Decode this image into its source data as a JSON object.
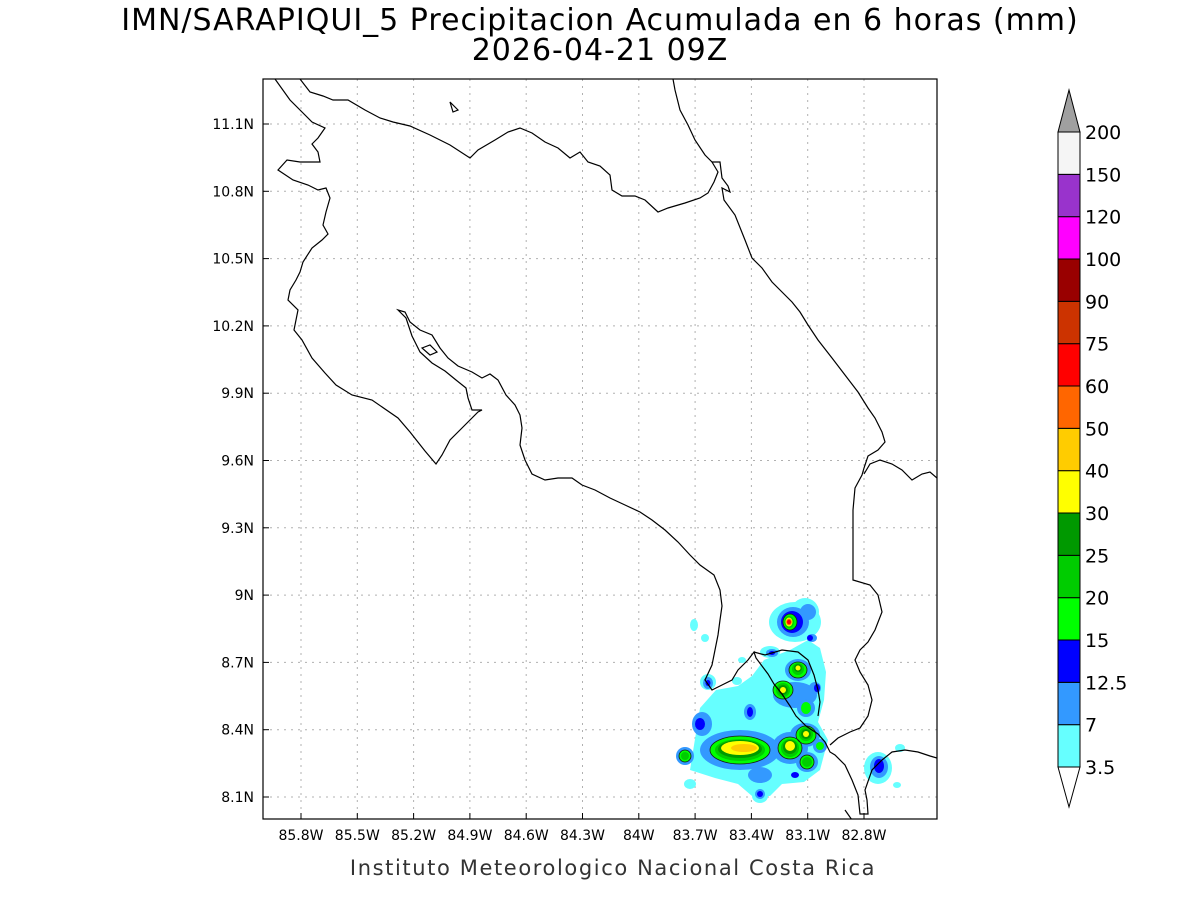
{
  "title": {
    "line1": "IMN/SARAPIQUI_5 Precipitacion Acumulada en 6 horas (mm)",
    "line2": "2026-04-21 09Z"
  },
  "credit": "Instituto Meteorologico Nacional Costa Rica",
  "map": {
    "lon_labels": [
      "85.8W",
      "85.5W",
      "85.2W",
      "84.9W",
      "84.6W",
      "84.3W",
      "84W",
      "83.7W",
      "83.4W",
      "83.1W",
      "82.8W"
    ],
    "lat_labels": [
      "11.1N",
      "10.8N",
      "10.5N",
      "10.2N",
      "9.9N",
      "9.6N",
      "9.3N",
      "9N",
      "8.7N",
      "8.4N",
      "8.1N"
    ]
  },
  "colorbar": {
    "labels": [
      "3.5",
      "7",
      "12.5",
      "15",
      "20",
      "25",
      "30",
      "40",
      "50",
      "60",
      "75",
      "90",
      "100",
      "120",
      "150",
      "200"
    ],
    "colors": [
      "#66ffff",
      "#3399ff",
      "#0000ff",
      "#00ff00",
      "#00cc00",
      "#009900",
      "#ffff00",
      "#ffcc00",
      "#ff6600",
      "#ff0000",
      "#cc3300",
      "#990000",
      "#ff00ff",
      "#9933cc",
      "#f5f5f5",
      "#a0a0a0"
    ]
  }
}
